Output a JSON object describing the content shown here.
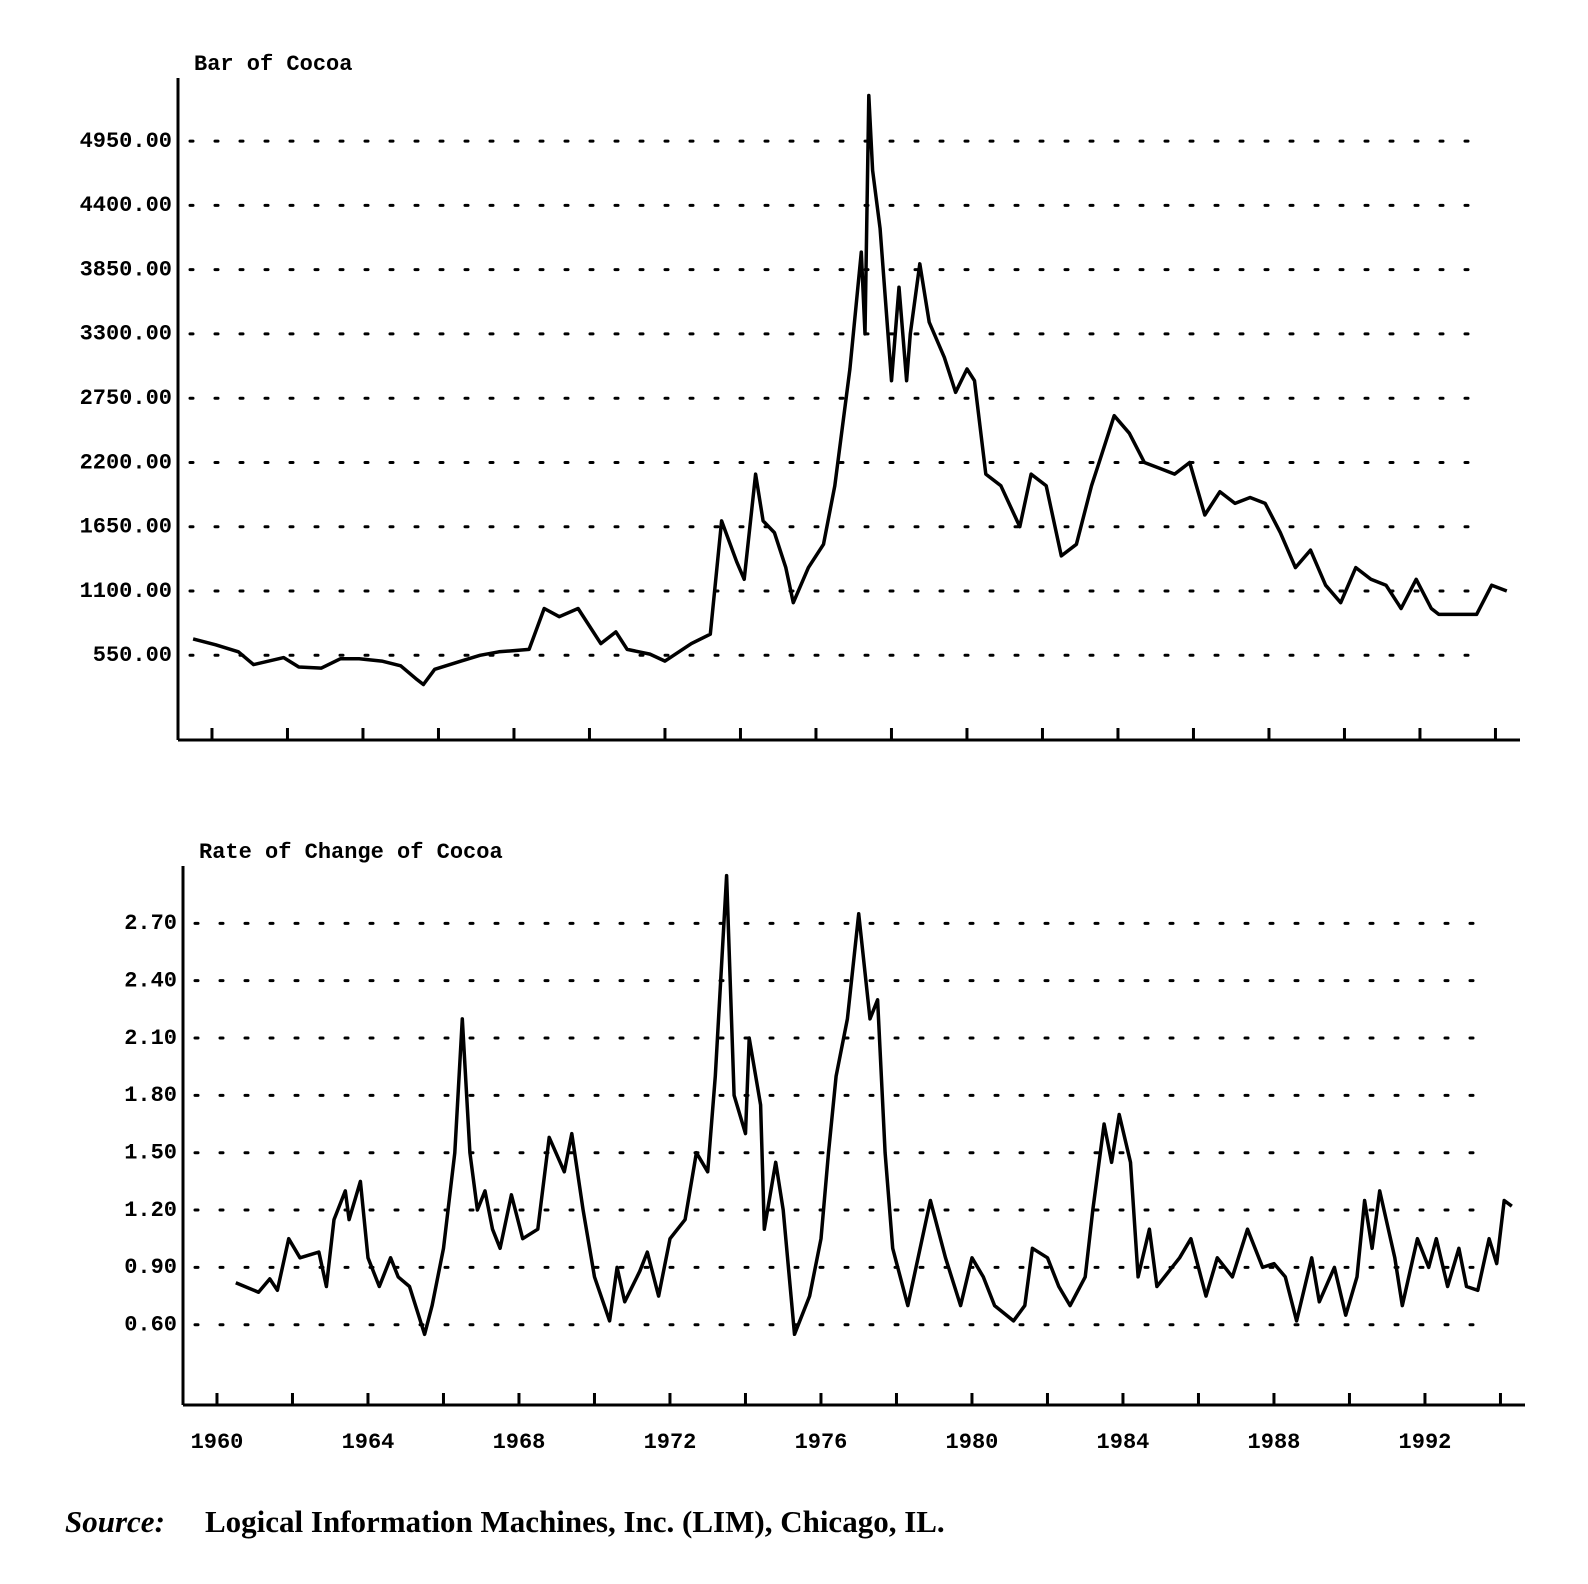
{
  "chart_data": [
    {
      "type": "line",
      "title": "Bar of Cocoa",
      "color": "#000000",
      "grid": true,
      "xlim": [
        1959.1,
        1994.65
      ],
      "ylim": [
        -175,
        5490
      ],
      "xminorticks": [
        1960,
        1962,
        1964,
        1966,
        1968,
        1970,
        1972,
        1974,
        1976,
        1978,
        1980,
        1982,
        1984,
        1986,
        1988,
        1990,
        1992,
        1994
      ],
      "yticks": [
        {
          "value": 550,
          "label": "550.00"
        },
        {
          "value": 1100,
          "label": "1100.00"
        },
        {
          "value": 1650,
          "label": "1650.00"
        },
        {
          "value": 2200,
          "label": "2200.00"
        },
        {
          "value": 2750,
          "label": "2750.00"
        },
        {
          "value": 3300,
          "label": "3300.00"
        },
        {
          "value": 3850,
          "label": "3850.00"
        },
        {
          "value": 4400,
          "label": "4400.00"
        },
        {
          "value": 4950,
          "label": "4950.00"
        }
      ],
      "x": [
        1959.5,
        1960.1,
        1960.7,
        1961.1,
        1961.9,
        1962.3,
        1962.9,
        1963.4,
        1963.9,
        1964.5,
        1965.0,
        1965.4,
        1965.6,
        1965.9,
        1966.6,
        1967.1,
        1967.6,
        1968.4,
        1968.8,
        1969.2,
        1969.7,
        1970.3,
        1970.7,
        1971.0,
        1971.6,
        1972.0,
        1972.7,
        1973.2,
        1973.5,
        1973.9,
        1974.1,
        1974.4,
        1974.6,
        1974.9,
        1975.2,
        1975.4,
        1975.8,
        1976.2,
        1976.5,
        1976.9,
        1977.2,
        1977.3,
        1977.4,
        1977.5,
        1977.7,
        1978.0,
        1978.2,
        1978.4,
        1978.5,
        1978.75,
        1979.0,
        1979.4,
        1979.7,
        1980.0,
        1980.2,
        1980.5,
        1980.9,
        1981.4,
        1981.7,
        1982.1,
        1982.5,
        1982.9,
        1983.3,
        1983.5,
        1983.9,
        1984.3,
        1984.7,
        1985.1,
        1985.5,
        1985.9,
        1986.3,
        1986.7,
        1987.1,
        1987.5,
        1987.9,
        1988.3,
        1988.7,
        1989.1,
        1989.5,
        1989.9,
        1990.3,
        1990.7,
        1991.1,
        1991.5,
        1991.9,
        1992.3,
        1992.5,
        1993.1,
        1993.5,
        1993.9,
        1994.3
      ],
      "values": [
        690,
        640,
        580,
        470,
        530,
        450,
        440,
        520,
        520,
        500,
        460,
        350,
        300,
        430,
        500,
        550,
        580,
        600,
        950,
        880,
        950,
        650,
        750,
        600,
        560,
        500,
        650,
        730,
        1700,
        1350,
        1200,
        2100,
        1700,
        1600,
        1300,
        1000,
        1300,
        1500,
        2000,
        3000,
        4000,
        3300,
        5340,
        4700,
        4200,
        2900,
        3700,
        2900,
        3300,
        3900,
        3400,
        3100,
        2800,
        3000,
        2900,
        2100,
        2000,
        1650,
        2100,
        2000,
        1400,
        1500,
        2000,
        2200,
        2600,
        2450,
        2200,
        2150,
        2100,
        2200,
        1750,
        1950,
        1850,
        1900,
        1850,
        1600,
        1300,
        1450,
        1150,
        1000,
        1300,
        1200,
        1150,
        950,
        1200,
        950,
        900,
        900,
        900,
        1150,
        1100
      ]
    },
    {
      "type": "line",
      "title": "Rate of Change of Cocoa",
      "color": "#000000",
      "grid": true,
      "xlim": [
        1959.1,
        1994.65
      ],
      "ylim": [
        0.18,
        3.0
      ],
      "xticks": [
        1960,
        1964,
        1968,
        1972,
        1976,
        1980,
        1984,
        1988,
        1992
      ],
      "xminorticks": [
        1962,
        1966,
        1970,
        1974,
        1978,
        1982,
        1986,
        1990,
        1994
      ],
      "yticks": [
        {
          "value": 0.6,
          "label": "0.60"
        },
        {
          "value": 0.9,
          "label": "0.90"
        },
        {
          "value": 1.2,
          "label": "1.20"
        },
        {
          "value": 1.5,
          "label": "1.50"
        },
        {
          "value": 1.8,
          "label": "1.80"
        },
        {
          "value": 2.1,
          "label": "2.10"
        },
        {
          "value": 2.4,
          "label": "2.40"
        },
        {
          "value": 2.7,
          "label": "2.70"
        }
      ],
      "x": [
        1960.5,
        1961.1,
        1961.4,
        1961.6,
        1961.9,
        1962.2,
        1962.7,
        1962.9,
        1963.1,
        1963.4,
        1963.5,
        1963.8,
        1964.0,
        1964.3,
        1964.6,
        1964.8,
        1965.1,
        1965.5,
        1965.7,
        1966.0,
        1966.3,
        1966.5,
        1966.7,
        1966.9,
        1967.1,
        1967.3,
        1967.5,
        1967.8,
        1968.1,
        1968.5,
        1968.8,
        1969.2,
        1969.4,
        1969.7,
        1970.0,
        1970.4,
        1970.6,
        1970.8,
        1971.2,
        1971.4,
        1971.7,
        1972.0,
        1972.4,
        1972.7,
        1973.0,
        1973.2,
        1973.5,
        1973.7,
        1974.0,
        1974.1,
        1974.4,
        1974.5,
        1974.8,
        1975.0,
        1975.3,
        1975.7,
        1976.0,
        1976.2,
        1976.4,
        1976.7,
        1977.0,
        1977.3,
        1977.5,
        1977.7,
        1977.9,
        1978.3,
        1978.9,
        1979.3,
        1979.7,
        1980.0,
        1980.3,
        1980.6,
        1981.1,
        1981.4,
        1981.6,
        1982.0,
        1982.3,
        1982.6,
        1983.0,
        1983.2,
        1983.5,
        1983.7,
        1983.9,
        1984.2,
        1984.4,
        1984.7,
        1984.9,
        1985.5,
        1985.8,
        1986.2,
        1986.5,
        1986.9,
        1987.3,
        1987.7,
        1988.0,
        1988.3,
        1988.6,
        1989.0,
        1989.2,
        1989.6,
        1989.9,
        1990.2,
        1990.4,
        1990.6,
        1990.8,
        1991.2,
        1991.4,
        1991.8,
        1992.1,
        1992.3,
        1992.6,
        1992.9,
        1993.1,
        1993.4,
        1993.7,
        1993.9,
        1994.1,
        1994.3
      ],
      "values": [
        0.82,
        0.77,
        0.84,
        0.78,
        1.05,
        0.95,
        0.98,
        0.8,
        1.15,
        1.3,
        1.15,
        1.35,
        0.95,
        0.8,
        0.95,
        0.85,
        0.8,
        0.55,
        0.7,
        1.0,
        1.5,
        2.2,
        1.5,
        1.2,
        1.3,
        1.1,
        1.0,
        1.28,
        1.05,
        1.1,
        1.58,
        1.4,
        1.6,
        1.2,
        0.85,
        0.62,
        0.9,
        0.72,
        0.88,
        0.98,
        0.75,
        1.05,
        1.15,
        1.5,
        1.4,
        1.9,
        2.95,
        1.8,
        1.6,
        2.1,
        1.75,
        1.1,
        1.45,
        1.2,
        0.55,
        0.75,
        1.05,
        1.5,
        1.9,
        2.2,
        2.75,
        2.2,
        2.3,
        1.5,
        1.0,
        0.7,
        1.25,
        0.95,
        0.7,
        0.95,
        0.85,
        0.7,
        0.62,
        0.7,
        1.0,
        0.95,
        0.8,
        0.7,
        0.85,
        1.2,
        1.65,
        1.45,
        1.7,
        1.45,
        0.85,
        1.1,
        0.8,
        0.95,
        1.05,
        0.75,
        0.95,
        0.85,
        1.1,
        0.9,
        0.92,
        0.85,
        0.62,
        0.95,
        0.72,
        0.9,
        0.65,
        0.85,
        1.25,
        1.0,
        1.3,
        0.95,
        0.7,
        1.05,
        0.9,
        1.05,
        0.8,
        1.0,
        0.8,
        0.78,
        1.05,
        0.92,
        1.25,
        1.22
      ]
    }
  ],
  "footer": {
    "label": "Source:",
    "text": "Logical Information Machines, Inc. (LIM), Chicago, IL."
  }
}
